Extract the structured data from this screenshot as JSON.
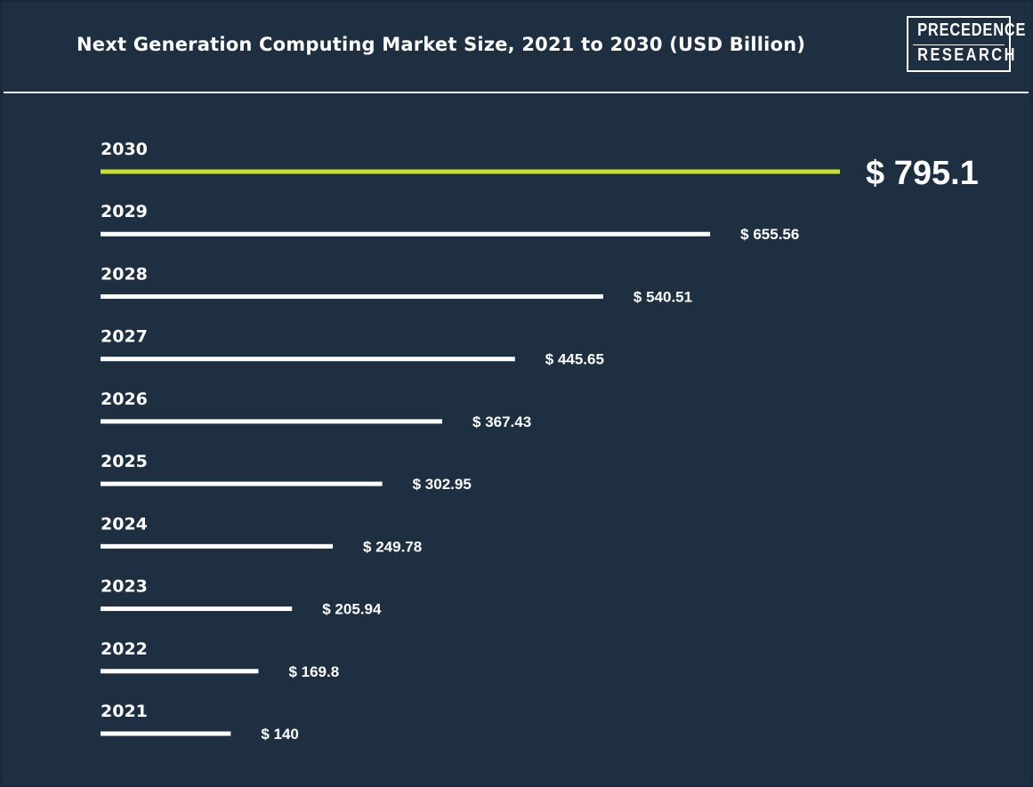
{
  "header": {
    "title": "Next Generation Computing Market Size, 2021 to 2030 (USD Billion)",
    "logo_line1": "PRECEDENCE",
    "logo_line2": "RESEARCH"
  },
  "colors": {
    "background": "#1e2f42",
    "bar_default": "#ffffff",
    "bar_highlight": "#c8e02a",
    "text": "#ffffff"
  },
  "chart_data": {
    "type": "bar",
    "orientation": "horizontal",
    "title": "Next Generation Computing Market Size, 2021 to 2030 (USD Billion)",
    "xlabel": "",
    "ylabel": "",
    "xlim": [
      0,
      795.1
    ],
    "grid": false,
    "legend": "none",
    "highlight_category": "2030",
    "categories": [
      "2030",
      "2029",
      "2028",
      "2027",
      "2026",
      "2025",
      "2024",
      "2023",
      "2022",
      "2021"
    ],
    "values": [
      795.1,
      655.56,
      540.51,
      445.65,
      367.43,
      302.95,
      249.78,
      205.94,
      169.8,
      140
    ],
    "value_labels": [
      "$ 795.1",
      "$ 655.56",
      "$ 540.51",
      "$ 445.65",
      "$ 367.43",
      "$ 302.95",
      "$ 249.78",
      "$ 205.94",
      "$ 169.8",
      "$ 140"
    ]
  }
}
